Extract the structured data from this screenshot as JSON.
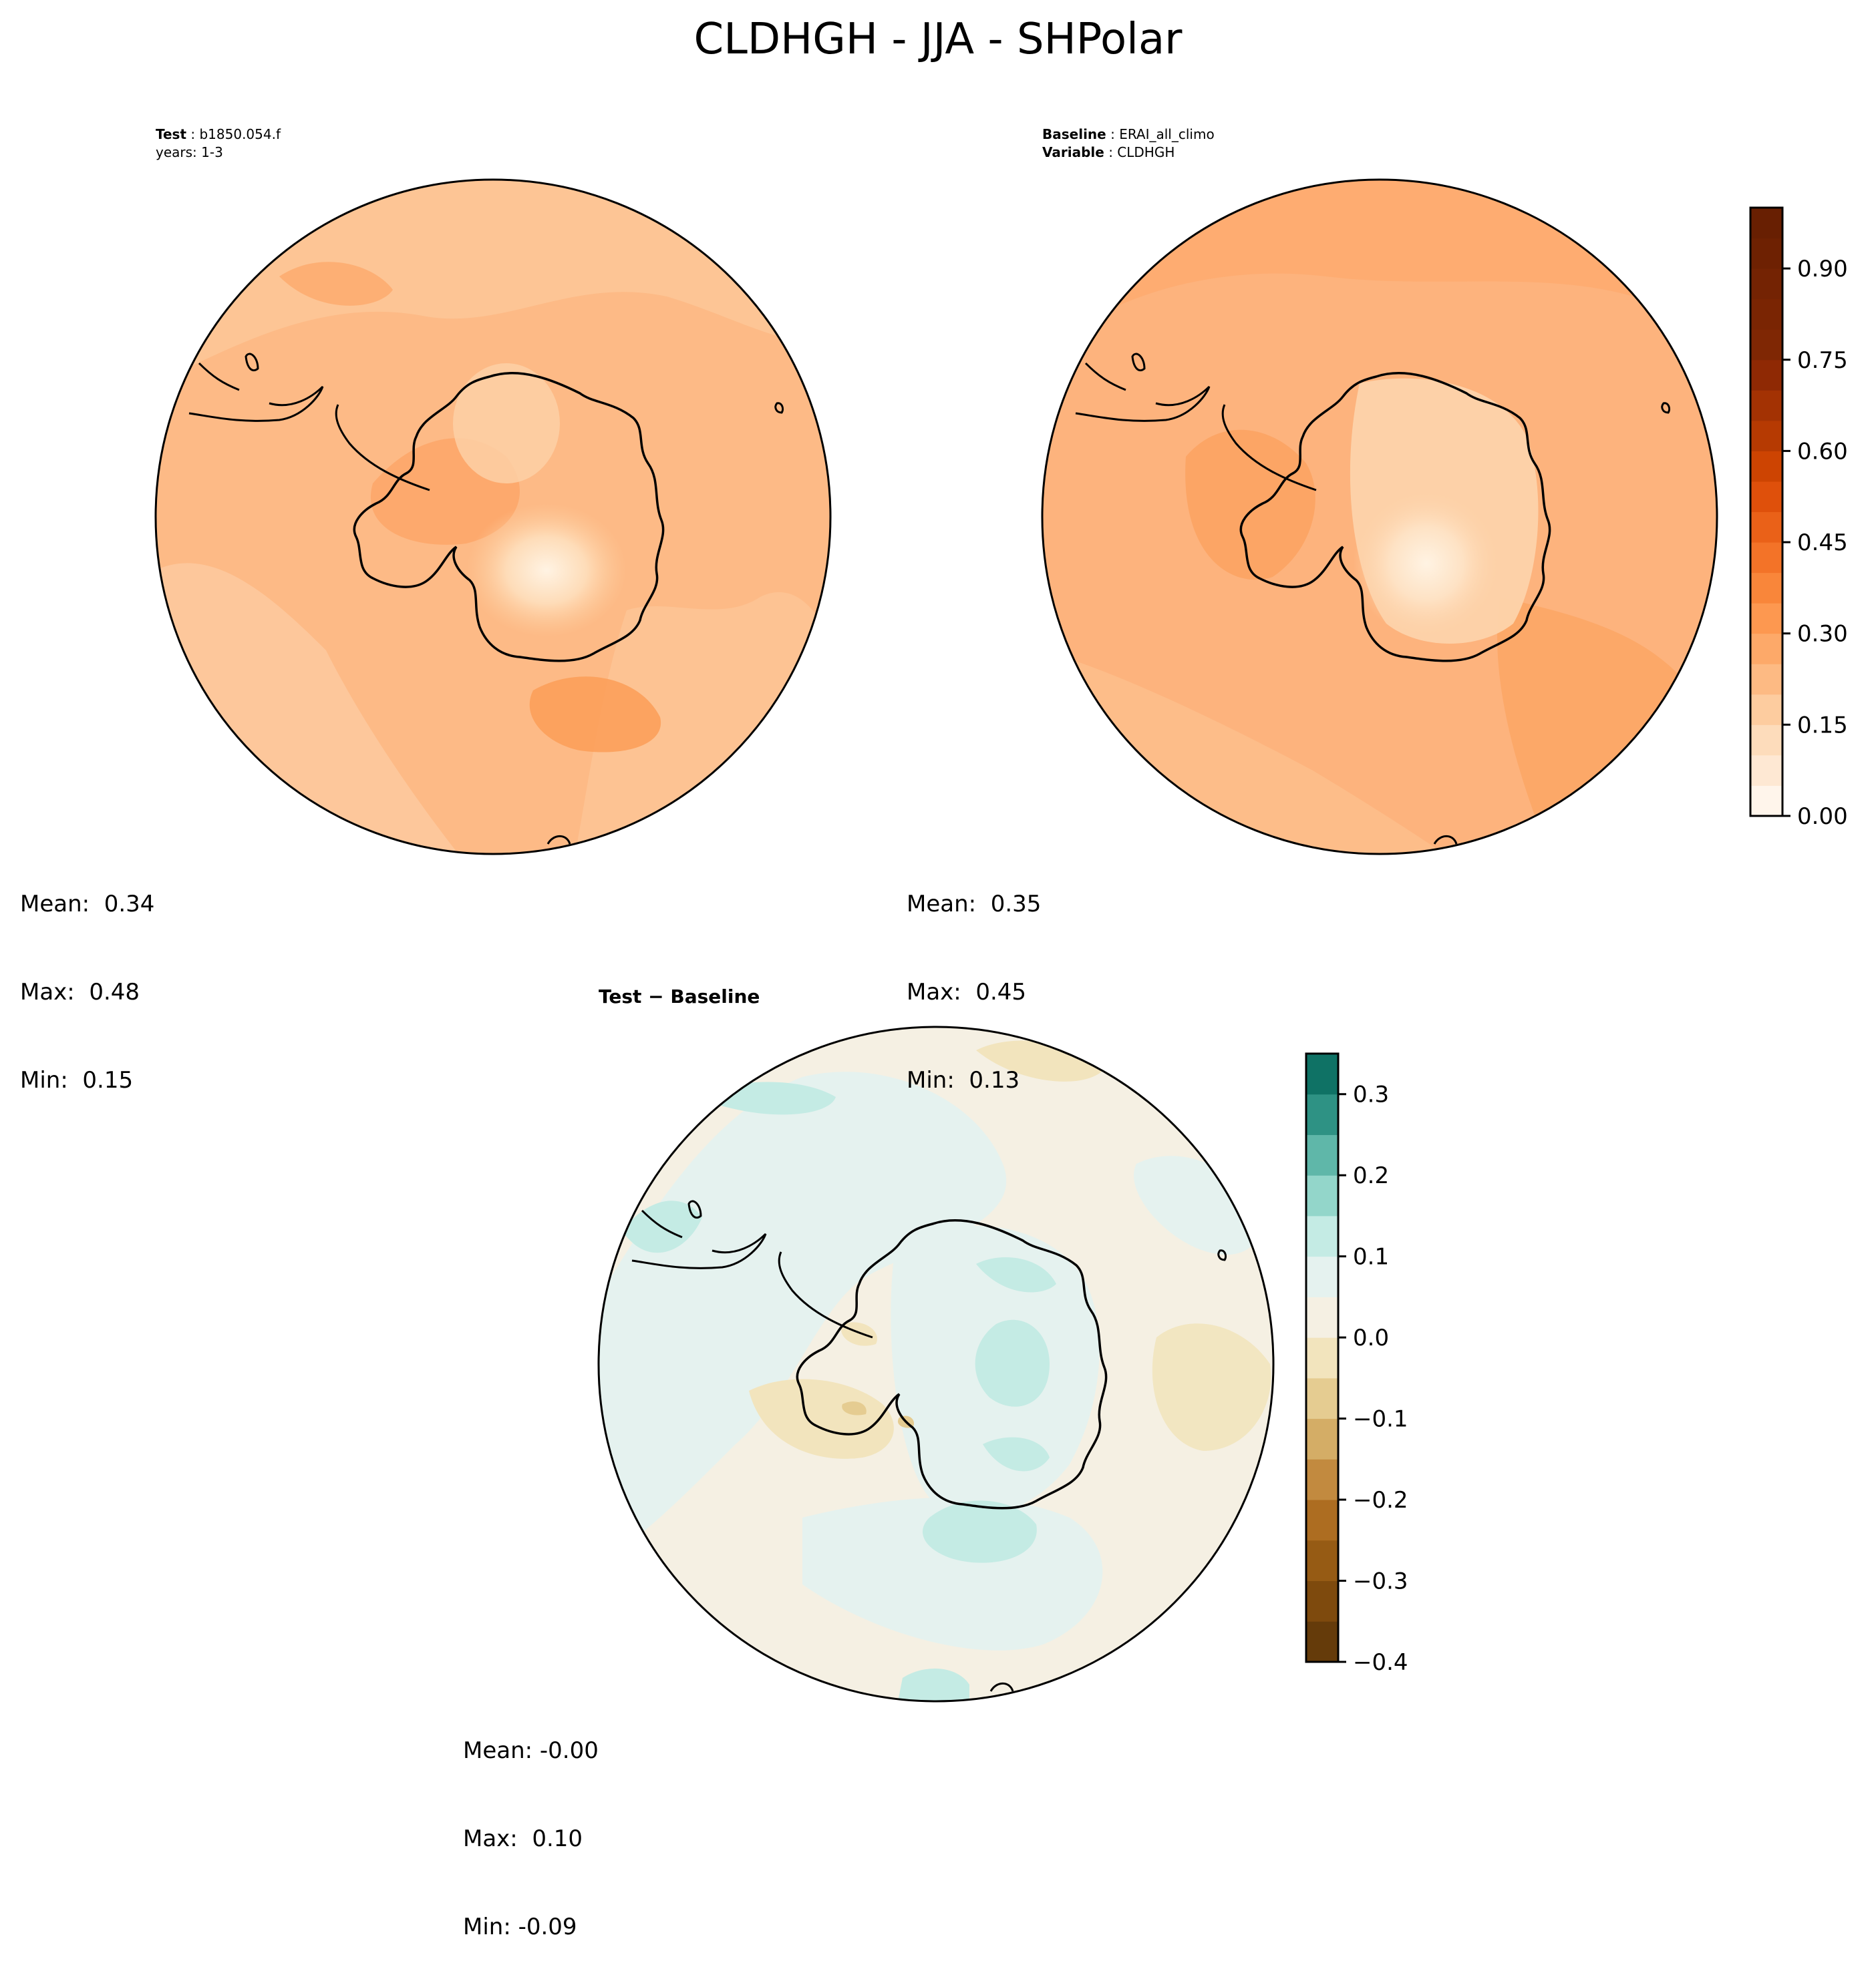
{
  "figure": {
    "title": "CLDHGH - JJA - SHPolar"
  },
  "panels": {
    "test": {
      "label_key": "Test",
      "label_value": "b1850.054.f",
      "label_line2": "years: 1-3",
      "stats": {
        "mean": "Mean:  0.34",
        "max": "Max:  0.48",
        "min": "Min:  0.15"
      }
    },
    "baseline": {
      "label1_key": "Baseline",
      "label1_value": "ERAI_all_climo",
      "label2_key": "Variable",
      "label2_value": "CLDHGH",
      "stats": {
        "mean": "Mean:  0.35",
        "max": "Max:  0.45",
        "min": "Min:  0.13"
      }
    },
    "diff": {
      "label": "Test − Baseline",
      "stats": {
        "mean": "Mean: -0.00",
        "max": "Max:  0.10",
        "min": "Min: -0.09"
      }
    }
  },
  "chart_data": [
    {
      "type": "heatmap",
      "projection": "south-polar-stereographic",
      "panel": "Test",
      "mean": 0.34,
      "max": 0.48,
      "min": 0.15
    },
    {
      "type": "heatmap",
      "projection": "south-polar-stereographic",
      "panel": "Baseline",
      "mean": 0.35,
      "max": 0.45,
      "min": 0.13
    },
    {
      "type": "heatmap",
      "projection": "south-polar-stereographic",
      "panel": "Test - Baseline",
      "mean": -0.0,
      "max": 0.1,
      "min": -0.09
    }
  ],
  "colorbars": {
    "main": {
      "min": 0.0,
      "max": 1.0,
      "step": 0.05,
      "ticks": [
        0.0,
        0.15,
        0.3,
        0.45,
        0.6,
        0.75,
        0.9
      ],
      "tick_labels": [
        "0.00",
        "0.15",
        "0.30",
        "0.45",
        "0.60",
        "0.75",
        "0.90"
      ],
      "colors": [
        "#fff5eb",
        "#fee8d3",
        "#fddcbb",
        "#fdcc9f",
        "#fdba83",
        "#fda969",
        "#fd9850",
        "#f9863a",
        "#f37328",
        "#ea6118",
        "#df500b",
        "#cd4402",
        "#b63a02",
        "#a33203",
        "#8f2904",
        "#7f2704",
        "#7a2503",
        "#742303",
        "#6e2102",
        "#681f02"
      ]
    },
    "diff": {
      "min": -0.4,
      "max": 0.35,
      "step": 0.05,
      "ticks": [
        -0.4,
        -0.3,
        -0.2,
        -0.1,
        0.0,
        0.1,
        0.2,
        0.3
      ],
      "tick_labels": [
        "−0.4",
        "−0.3",
        "−0.2",
        "−0.1",
        "0.0",
        "0.1",
        "0.2",
        "0.3"
      ],
      "colors": [
        "#653b0a",
        "#7e4a0d",
        "#965b14",
        "#ad6d21",
        "#c28a3f",
        "#d4ad66",
        "#e5cc91",
        "#f2e4bd",
        "#f5f0e3",
        "#e5f2ef",
        "#c4ebe4",
        "#93d6ca",
        "#5fb7a9",
        "#2e9284",
        "#0f7265"
      ]
    }
  },
  "colors": {
    "test_base": "#fdb27a",
    "baseline_base": "#fdb27a",
    "diff_base": "#f5f0e3",
    "coast": "#000000"
  }
}
